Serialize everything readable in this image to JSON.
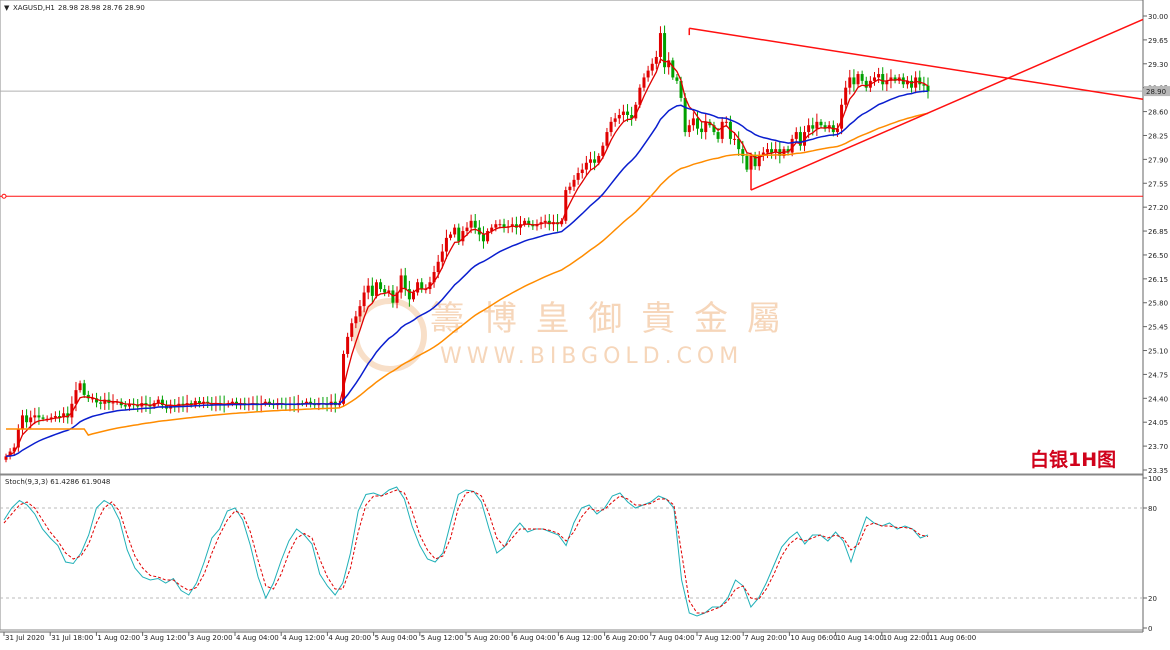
{
  "header": {
    "symbol_label": "XAGUSD,H1",
    "ohlc_text": "28.98 28.98 28.76 28.90"
  },
  "current_price_label": "28.90",
  "chart_tag": "白银1H图",
  "watermark": {
    "cn": "籌 博 皇 御 貴 金 屬",
    "url": "WWW.BIBGOLD.COM"
  },
  "colors": {
    "up_candle": "#e00000",
    "down_candle": "#00a000",
    "ema_fast": "#e00000",
    "ma_mid": "#0a1ecf",
    "ma_slow": "#ff8c00",
    "trendline": "#ff1010",
    "stoch_main": "#20b0b8",
    "stoch_signal": "#e00000"
  },
  "chart_data": [
    {
      "type": "candlestick",
      "symbol": "XAGUSD",
      "timeframe": "H1",
      "ylim": [
        23.35,
        30.0
      ],
      "y_ticks": [
        "30.00",
        "29.65",
        "29.30",
        "28.95",
        "28.60",
        "28.25",
        "27.90",
        "27.55",
        "27.20",
        "26.85",
        "26.50",
        "26.15",
        "25.80",
        "25.45",
        "25.10",
        "24.75",
        "24.40",
        "24.05",
        "23.70",
        "23.35"
      ],
      "x_ticks": [
        "31 Jul 2020",
        "31 Jul 18:00",
        "1 Aug 02:00",
        "3 Aug 12:00",
        "3 Aug 20:00",
        "4 Aug 04:00",
        "4 Aug 12:00",
        "4 Aug 20:00",
        "5 Aug 04:00",
        "5 Aug 12:00",
        "5 Aug 20:00",
        "6 Aug 04:00",
        "6 Aug 12:00",
        "6 Aug 20:00",
        "7 Aug 04:00",
        "7 Aug 12:00",
        "7 Aug 20:00",
        "10 Aug 06:00",
        "10 Aug 14:00",
        "10 Aug 22:00",
        "11 Aug 06:00"
      ],
      "horizontal_level": 27.36,
      "current_price": 28.9,
      "close_series": [
        23.55,
        23.62,
        23.68,
        23.95,
        24.15,
        24.05,
        24.12,
        24.15,
        24.12,
        24.1,
        24.1,
        24.12,
        24.14,
        24.12,
        24.18,
        24.12,
        24.32,
        24.52,
        24.62,
        24.45,
        24.4,
        24.4,
        24.34,
        24.32,
        24.38,
        24.33,
        24.34,
        24.35,
        24.3,
        24.28,
        24.32,
        24.3,
        24.28,
        24.33,
        24.3,
        24.28,
        24.33,
        24.38,
        24.3,
        24.25,
        24.3,
        24.28,
        24.32,
        24.3,
        24.33,
        24.3,
        24.36,
        24.32,
        24.35,
        24.33,
        24.3,
        24.33,
        24.32,
        24.3,
        24.33,
        24.35,
        24.3,
        24.33,
        24.3,
        24.32,
        24.33,
        24.3,
        24.32,
        24.35,
        24.32,
        24.3,
        24.33,
        24.32,
        24.3,
        24.32,
        24.3,
        24.33,
        24.32,
        24.35,
        24.32,
        24.3,
        24.33,
        24.32,
        24.3,
        24.35,
        24.3,
        24.32,
        25.05,
        25.3,
        25.5,
        25.6,
        25.75,
        25.95,
        26.05,
        25.9,
        26.1,
        26.0,
        25.95,
        25.98,
        25.8,
        25.95,
        26.2,
        26.0,
        25.85,
        25.95,
        26.1,
        26.0,
        26.0,
        26.1,
        26.25,
        26.4,
        26.55,
        26.75,
        26.8,
        26.9,
        26.7,
        26.85,
        26.9,
        27.0,
        26.9,
        26.8,
        26.7,
        26.85,
        26.9,
        26.95,
        26.95,
        26.9,
        26.92,
        26.95,
        26.9,
        26.95,
        27.0,
        26.95,
        26.92,
        26.95,
        26.98,
        27.0,
        26.95,
        26.98,
        26.95,
        27.0,
        27.45,
        27.5,
        27.6,
        27.7,
        27.75,
        27.85,
        27.9,
        27.85,
        27.95,
        28.1,
        28.3,
        28.45,
        28.5,
        28.55,
        28.6,
        28.55,
        28.5,
        28.7,
        28.95,
        29.1,
        29.2,
        29.3,
        29.4,
        29.75,
        29.25,
        29.35,
        29.1,
        29.05,
        28.8,
        28.3,
        28.4,
        28.5,
        28.35,
        28.3,
        28.45,
        28.4,
        28.3,
        28.2,
        28.45,
        28.45,
        28.2,
        28.2,
        28.05,
        27.95,
        27.75,
        27.95,
        27.8,
        27.95,
        28.0,
        28.05,
        28.0,
        28.05,
        27.95,
        28.05,
        28.0,
        28.2,
        28.3,
        28.1,
        28.3,
        28.4,
        28.35,
        28.45,
        28.4,
        28.35,
        28.4,
        28.3,
        28.35,
        28.7,
        28.95,
        29.1,
        29.0,
        29.15,
        29.05,
        28.95,
        29.05,
        29.1,
        29.15,
        29.0,
        29.05,
        29.1,
        29.05,
        29.1,
        29.0,
        29.05,
        28.95,
        29.1,
        29.0,
        28.98,
        28.9
      ],
      "indicators": [
        "EMA fast (red)",
        "MA (blue)",
        "MA (orange)"
      ],
      "trendlines": [
        {
          "from": [
            "7 Aug 04:00",
            29.82
          ],
          "to": [
            "right edge",
            28.78
          ],
          "color": "red"
        },
        {
          "from": [
            "7 Aug 20:00",
            27.45
          ],
          "to": [
            "right edge",
            29.95
          ],
          "color": "red"
        }
      ]
    },
    {
      "type": "line",
      "name": "Stoch(9,3,3)",
      "header_values": "61.4286 61.9048",
      "ylim": [
        0,
        100
      ],
      "y_ticks": [
        "100",
        "80",
        "20",
        "0"
      ],
      "levels": [
        80,
        20
      ],
      "main_series": [
        72,
        80,
        85,
        82,
        76,
        66,
        60,
        55,
        44,
        43,
        50,
        62,
        80,
        85,
        82,
        72,
        52,
        40,
        34,
        32,
        33,
        30,
        33,
        25,
        22,
        30,
        44,
        60,
        66,
        78,
        80,
        72,
        55,
        34,
        20,
        30,
        45,
        58,
        66,
        62,
        56,
        36,
        28,
        22,
        30,
        50,
        78,
        89,
        90,
        88,
        92,
        94,
        86,
        68,
        55,
        46,
        44,
        50,
        70,
        89,
        92,
        91,
        84,
        66,
        50,
        54,
        64,
        70,
        64,
        66,
        66,
        64,
        62,
        55,
        70,
        80,
        82,
        76,
        80,
        88,
        90,
        84,
        80,
        82,
        84,
        88,
        86,
        80,
        32,
        10,
        8,
        10,
        14,
        14,
        20,
        32,
        28,
        14,
        20,
        30,
        42,
        54,
        60,
        64,
        56,
        62,
        62,
        58,
        64,
        58,
        44,
        60,
        74,
        70,
        68,
        70,
        66,
        68,
        66,
        60,
        62
      ],
      "signal_series": [
        70,
        76,
        82,
        84,
        80,
        72,
        64,
        58,
        50,
        46,
        48,
        56,
        70,
        80,
        84,
        78,
        62,
        48,
        40,
        35,
        34,
        32,
        32,
        28,
        25,
        27,
        36,
        50,
        62,
        72,
        78,
        76,
        64,
        45,
        28,
        26,
        36,
        50,
        60,
        63,
        60,
        46,
        34,
        26,
        26,
        40,
        64,
        82,
        88,
        88,
        90,
        92,
        90,
        78,
        62,
        52,
        46,
        48,
        60,
        80,
        90,
        91,
        88,
        76,
        60,
        54,
        60,
        66,
        66,
        66,
        66,
        65,
        63,
        58,
        64,
        74,
        80,
        78,
        79,
        84,
        88,
        86,
        82,
        82,
        83,
        86,
        86,
        82,
        50,
        18,
        10,
        10,
        12,
        14,
        18,
        26,
        28,
        20,
        19,
        26,
        36,
        48,
        56,
        60,
        58,
        60,
        62,
        60,
        62,
        60,
        52,
        56,
        68,
        70,
        68,
        68,
        67,
        67,
        66,
        62,
        61
      ]
    }
  ]
}
